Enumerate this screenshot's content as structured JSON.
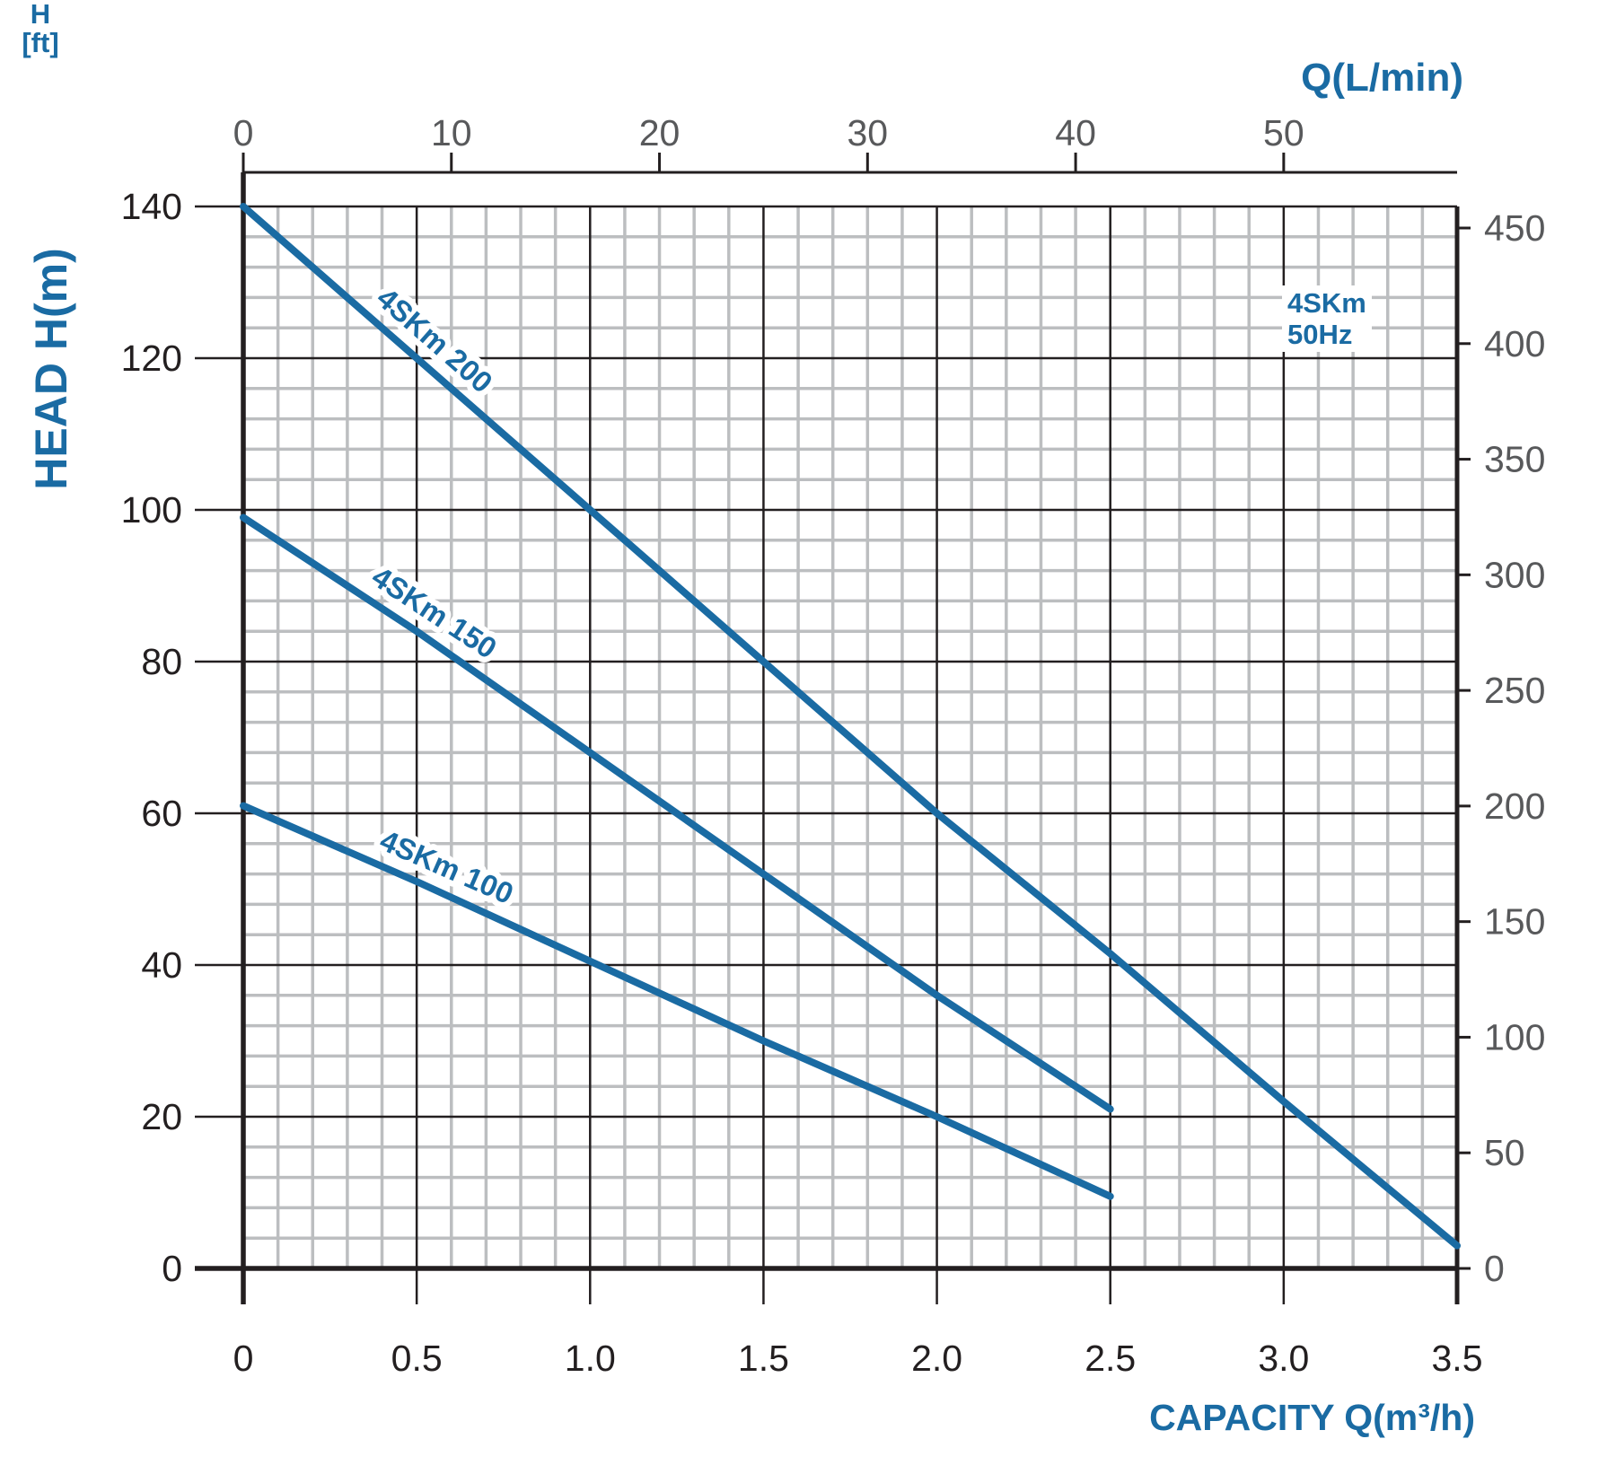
{
  "chart_data": {
    "type": "line",
    "title": "4SKm 50Hz submersible pump performance curves",
    "annotation": {
      "lines": [
        "4SKm",
        "50Hz"
      ]
    },
    "axes": {
      "x_bottom": {
        "label": "CAPACITY Q(m³/h)",
        "unit": "m³/h",
        "range": [
          0,
          3.5
        ],
        "ticks": [
          0,
          0.5,
          1.0,
          1.5,
          2.0,
          2.5,
          3.0,
          3.5
        ],
        "tick_labels": [
          "0",
          "0.5",
          "1.0",
          "1.5",
          "2.0",
          "2.5",
          "3.0",
          "3.5"
        ]
      },
      "x_top": {
        "label": "Q(L/min)",
        "unit": "L/min",
        "range": [
          0,
          58.33
        ],
        "ticks": [
          0,
          10,
          20,
          30,
          40,
          50
        ],
        "tick_labels": [
          "0",
          "10",
          "20",
          "30",
          "40",
          "50"
        ]
      },
      "y_left": {
        "label": "HEAD H(m)",
        "unit": "m",
        "range": [
          0,
          140
        ],
        "ticks": [
          0,
          20,
          40,
          60,
          80,
          100,
          120,
          140
        ],
        "tick_labels": [
          "0",
          "20",
          "40",
          "60",
          "80",
          "100",
          "120",
          "140"
        ]
      },
      "y_right": {
        "label_lines": [
          "H",
          "[ft]"
        ],
        "unit": "ft",
        "range": [
          0,
          465
        ],
        "ticks": [
          0,
          50,
          100,
          150,
          200,
          250,
          300,
          350,
          400,
          450
        ],
        "tick_labels": [
          "0",
          "50",
          "100",
          "150",
          "200",
          "250",
          "300",
          "350",
          "400",
          "450"
        ]
      }
    },
    "grid": {
      "show": true,
      "minor_x_step_m3h": 0.1,
      "minor_y_step_m": 4,
      "major_x_step_m3h": 0.5,
      "major_y_step_m": 20
    },
    "series": [
      {
        "name": "4SKm 200",
        "points_m3h_m": [
          [
            0,
            140
          ],
          [
            0.5,
            120
          ],
          [
            1.0,
            100
          ],
          [
            1.5,
            80
          ],
          [
            2.0,
            60
          ],
          [
            2.5,
            41.5
          ],
          [
            3.0,
            22
          ],
          [
            3.5,
            3
          ]
        ],
        "label_q": 0.35
      },
      {
        "name": "4SKm 150",
        "points_m3h_m": [
          [
            0,
            99
          ],
          [
            0.5,
            84
          ],
          [
            1.0,
            68
          ],
          [
            1.5,
            52
          ],
          [
            2.0,
            36
          ],
          [
            2.5,
            21
          ]
        ],
        "label_q": 0.34
      },
      {
        "name": "4SKm 100",
        "points_m3h_m": [
          [
            0,
            61
          ],
          [
            0.5,
            51
          ],
          [
            1.0,
            40.5
          ],
          [
            1.5,
            30
          ],
          [
            2.0,
            20
          ],
          [
            2.5,
            9.5
          ]
        ],
        "label_q": 0.37
      }
    ],
    "legend_position": "labels-on-curves",
    "colors": {
      "curve": "#1a6ba3",
      "blue_text": "#1a6ba3",
      "tick_text_dark": "#231f20",
      "tick_text_gray": "#58595b",
      "grid_minor": "#bcbec0",
      "grid_major": "#231f20",
      "axis": "#231f20",
      "background": "#ffffff"
    }
  }
}
